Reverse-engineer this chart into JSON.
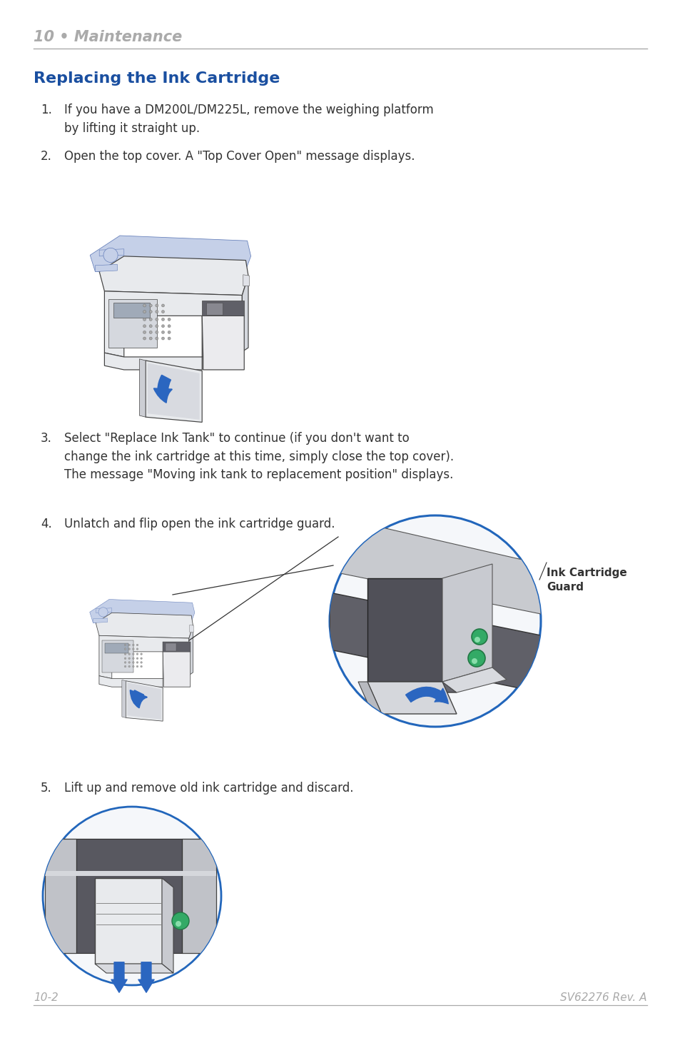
{
  "page_bg": "#ffffff",
  "header_text": "10 • Maintenance",
  "header_color": "#aaaaaa",
  "header_line_color": "#aaaaaa",
  "section_title": "Replacing the Ink Cartridge",
  "section_title_color": "#1a4fa0",
  "body_text_color": "#333333",
  "footer_left": "10-2",
  "footer_right": "SV62276 Rev. A",
  "footer_color": "#aaaaaa",
  "item1_num": "1.",
  "item1_text": "If you have a DM200L/DM225L, remove the weighing platform\nby lifting it straight up.",
  "item2_num": "2.",
  "item2_text": "Open the top cover. A \"Top Cover Open\" message displays.",
  "item3_num": "3.",
  "item3_text": "Select \"Replace Ink Tank\" to continue (if you don't want to\nchange the ink cartridge at this time, simply close the top cover).\nThe message \"Moving ink tank to replacement position\" displays.",
  "item4_num": "4.",
  "item4_text": "Unlatch and flip open the ink cartridge guard.",
  "item5_num": "5.",
  "item5_text": "Lift up and remove old ink cartridge and discard.",
  "annotation_text": "Ink Cartridge\nGuard",
  "machine_body_color": "#e8eaed",
  "machine_edge_color": "#444444",
  "machine_base_color": "#c5d0e8",
  "machine_base_edge": "#6680bb",
  "machine_kbd_color": "#d5d8de",
  "machine_screen_color": "#a0aab8",
  "machine_dark_color": "#555560",
  "machine_ink_color": "#888898",
  "arrow_blue": "#2b66c0",
  "arrow_blue_light": "#4488dd",
  "green_color": "#33aa66",
  "green_edge": "#227744",
  "circle_edge": "#2266bb",
  "circle_fill": "#f5f7fa"
}
